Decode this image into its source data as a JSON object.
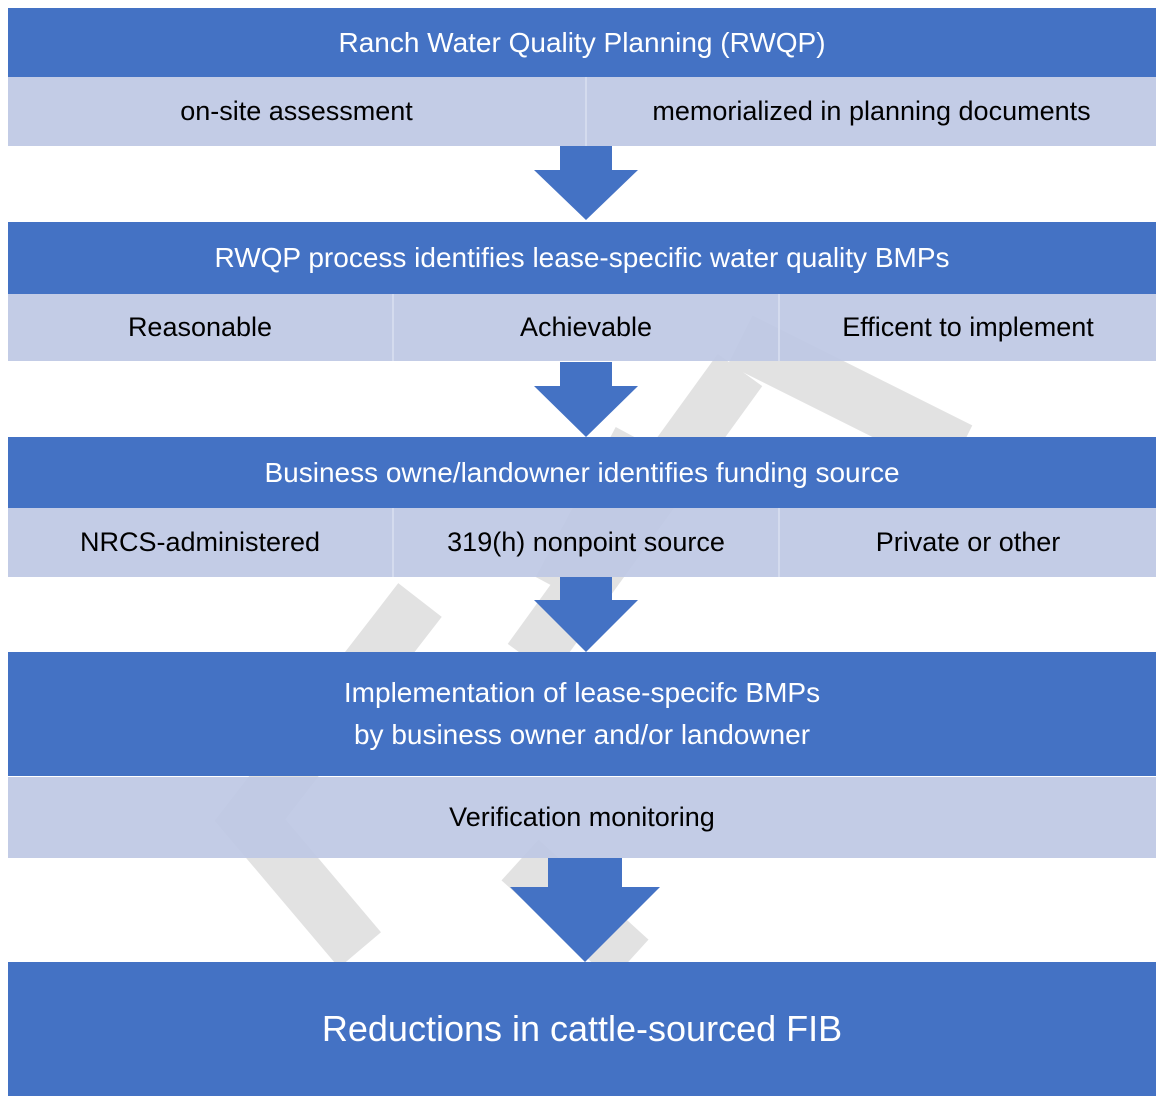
{
  "steps": [
    {
      "title": [
        "Ranch Water Quality Planning (RWQP)"
      ],
      "details": [
        "on-site assessment",
        "memorialized in planning documents"
      ]
    },
    {
      "title": [
        "RWQP process identifies lease-specific water quality BMPs"
      ],
      "details": [
        "Reasonable",
        "Achievable",
        "Efficent to implement"
      ]
    },
    {
      "title": [
        "Business owne/landowner identifies funding source"
      ],
      "details": [
        "NRCS-administered",
        "319(h) nonpoint source",
        "Private or other"
      ]
    },
    {
      "title": [
        "Implementation of lease-specifc BMPs",
        "by business owner and/or landowner"
      ],
      "details": [
        "Verification monitoring"
      ]
    }
  ],
  "final": "Reductions in cattle-sourced FIB"
}
